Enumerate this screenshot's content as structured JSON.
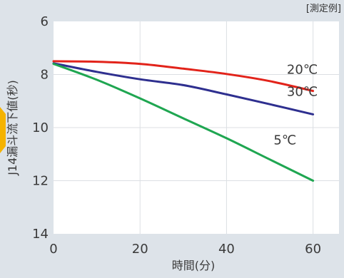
{
  "chart_data": {
    "type": "line",
    "note": "[測定例]",
    "xlabel": "時間(分)",
    "ylabel": "J14漏斗流下値(秒)",
    "xlim": [
      0,
      66
    ],
    "ylim": [
      6,
      14
    ],
    "y_inverted": true,
    "grid": true,
    "x_ticks": [
      0,
      20,
      40,
      60
    ],
    "y_ticks": [
      6,
      8,
      10,
      12,
      14
    ],
    "series": [
      {
        "name": "20℃",
        "color": "#e2231a",
        "x": [
          0,
          10,
          20,
          30,
          40,
          50,
          60
        ],
        "y": [
          7.5,
          7.52,
          7.6,
          7.78,
          7.98,
          8.25,
          8.62
        ]
      },
      {
        "name": "30℃",
        "color": "#2e2f8f",
        "x": [
          0,
          10,
          20,
          30,
          40,
          50,
          60
        ],
        "y": [
          7.58,
          7.9,
          8.18,
          8.4,
          8.75,
          9.12,
          9.5
        ]
      },
      {
        "name": "5℃",
        "color": "#1fa651",
        "x": [
          0,
          10,
          20,
          30,
          40,
          50,
          60
        ],
        "y": [
          7.6,
          8.2,
          8.9,
          9.65,
          10.4,
          11.2,
          12.0
        ]
      }
    ]
  }
}
